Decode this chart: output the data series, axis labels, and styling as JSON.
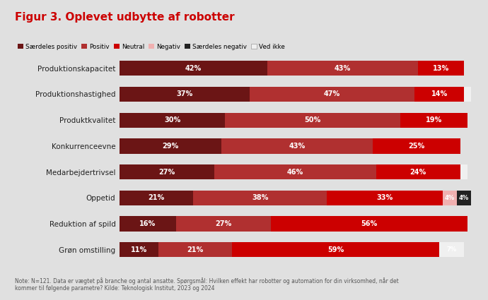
{
  "title": "Figur 3. Oplevet udbytte af robotter",
  "title_color": "#cc0000",
  "background_color": "#e0e0e0",
  "note": "Note: N=121. Data er vægtet på branche og antal ansatte. Spørgsmål: Hvilken effekt har robotter og automation for din virksomhed, når det\nkommer til følgende parametre? Kilde: Teknologisk Institut, 2023 og 2024",
  "categories": [
    "Produktionskapacitet",
    "Produktionshastighed",
    "Produktkvalitet",
    "Konkurrenceevne",
    "Medarbejdertrivsel",
    "Oppetid",
    "Reduktion af spild",
    "Grøn omstilling"
  ],
  "legend_labels": [
    "Særdeles positiv",
    "Positiv",
    "Neutral",
    "Negativ",
    "Særdeles negativ",
    "Ved ikke"
  ],
  "colors": [
    "#6b1515",
    "#b03030",
    "#cc0000",
    "#f0b0b0",
    "#222222",
    "#f0f0f0"
  ],
  "data": [
    [
      42,
      43,
      13,
      0,
      0,
      0
    ],
    [
      37,
      47,
      14,
      0,
      0,
      2
    ],
    [
      30,
      50,
      19,
      0,
      0,
      0
    ],
    [
      29,
      43,
      25,
      0,
      0,
      0
    ],
    [
      27,
      46,
      24,
      0,
      0,
      2
    ],
    [
      21,
      38,
      33,
      4,
      4,
      0
    ],
    [
      16,
      27,
      56,
      0,
      0,
      0
    ],
    [
      11,
      21,
      59,
      0,
      0,
      7
    ]
  ],
  "bar_labels": [
    [
      "42%",
      "43%",
      "13%",
      "",
      "",
      ""
    ],
    [
      "37%",
      "47%",
      "14%",
      "",
      "",
      ""
    ],
    [
      "30%",
      "50%",
      "19%",
      "",
      "",
      ""
    ],
    [
      "29%",
      "43%",
      "25%",
      "",
      "",
      ""
    ],
    [
      "27%",
      "46%",
      "24%",
      "",
      "",
      ""
    ],
    [
      "21%",
      "38%",
      "33%",
      "4%",
      "4%",
      ""
    ],
    [
      "16%",
      "27%",
      "56%",
      "",
      "",
      ""
    ],
    [
      "11%",
      "21%",
      "59%",
      "",
      "",
      "7%"
    ]
  ]
}
